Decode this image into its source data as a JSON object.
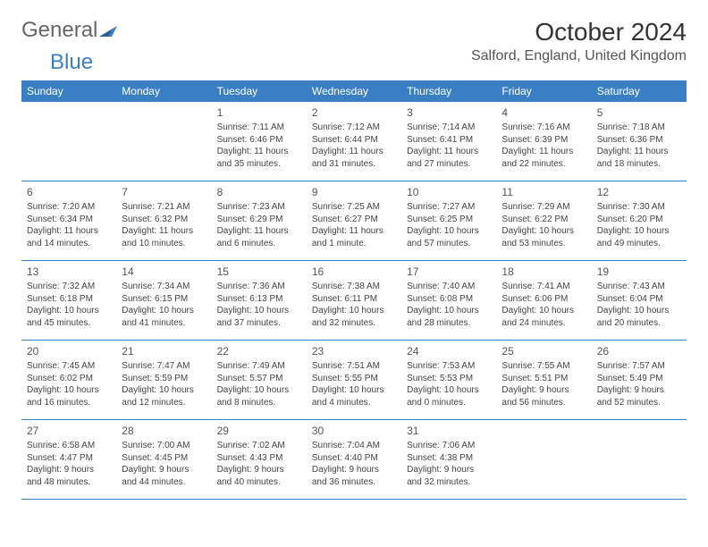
{
  "logo": {
    "text1": "General",
    "text2": "Blue",
    "shape_color": "#3a7fc4"
  },
  "header": {
    "month_title": "October 2024",
    "location": "Salford, England, United Kingdom"
  },
  "colors": {
    "header_bg": "#3a7fc4",
    "header_text": "#ffffff",
    "divider": "#3a7fc4",
    "text": "#444444"
  },
  "day_names": [
    "Sunday",
    "Monday",
    "Tuesday",
    "Wednesday",
    "Thursday",
    "Friday",
    "Saturday"
  ],
  "weeks": [
    [
      null,
      null,
      {
        "n": "1",
        "sr": "Sunrise: 7:11 AM",
        "ss": "Sunset: 6:46 PM",
        "dl": "Daylight: 11 hours and 35 minutes."
      },
      {
        "n": "2",
        "sr": "Sunrise: 7:12 AM",
        "ss": "Sunset: 6:44 PM",
        "dl": "Daylight: 11 hours and 31 minutes."
      },
      {
        "n": "3",
        "sr": "Sunrise: 7:14 AM",
        "ss": "Sunset: 6:41 PM",
        "dl": "Daylight: 11 hours and 27 minutes."
      },
      {
        "n": "4",
        "sr": "Sunrise: 7:16 AM",
        "ss": "Sunset: 6:39 PM",
        "dl": "Daylight: 11 hours and 22 minutes."
      },
      {
        "n": "5",
        "sr": "Sunrise: 7:18 AM",
        "ss": "Sunset: 6:36 PM",
        "dl": "Daylight: 11 hours and 18 minutes."
      }
    ],
    [
      {
        "n": "6",
        "sr": "Sunrise: 7:20 AM",
        "ss": "Sunset: 6:34 PM",
        "dl": "Daylight: 11 hours and 14 minutes."
      },
      {
        "n": "7",
        "sr": "Sunrise: 7:21 AM",
        "ss": "Sunset: 6:32 PM",
        "dl": "Daylight: 11 hours and 10 minutes."
      },
      {
        "n": "8",
        "sr": "Sunrise: 7:23 AM",
        "ss": "Sunset: 6:29 PM",
        "dl": "Daylight: 11 hours and 6 minutes."
      },
      {
        "n": "9",
        "sr": "Sunrise: 7:25 AM",
        "ss": "Sunset: 6:27 PM",
        "dl": "Daylight: 11 hours and 1 minute."
      },
      {
        "n": "10",
        "sr": "Sunrise: 7:27 AM",
        "ss": "Sunset: 6:25 PM",
        "dl": "Daylight: 10 hours and 57 minutes."
      },
      {
        "n": "11",
        "sr": "Sunrise: 7:29 AM",
        "ss": "Sunset: 6:22 PM",
        "dl": "Daylight: 10 hours and 53 minutes."
      },
      {
        "n": "12",
        "sr": "Sunrise: 7:30 AM",
        "ss": "Sunset: 6:20 PM",
        "dl": "Daylight: 10 hours and 49 minutes."
      }
    ],
    [
      {
        "n": "13",
        "sr": "Sunrise: 7:32 AM",
        "ss": "Sunset: 6:18 PM",
        "dl": "Daylight: 10 hours and 45 minutes."
      },
      {
        "n": "14",
        "sr": "Sunrise: 7:34 AM",
        "ss": "Sunset: 6:15 PM",
        "dl": "Daylight: 10 hours and 41 minutes."
      },
      {
        "n": "15",
        "sr": "Sunrise: 7:36 AM",
        "ss": "Sunset: 6:13 PM",
        "dl": "Daylight: 10 hours and 37 minutes."
      },
      {
        "n": "16",
        "sr": "Sunrise: 7:38 AM",
        "ss": "Sunset: 6:11 PM",
        "dl": "Daylight: 10 hours and 32 minutes."
      },
      {
        "n": "17",
        "sr": "Sunrise: 7:40 AM",
        "ss": "Sunset: 6:08 PM",
        "dl": "Daylight: 10 hours and 28 minutes."
      },
      {
        "n": "18",
        "sr": "Sunrise: 7:41 AM",
        "ss": "Sunset: 6:06 PM",
        "dl": "Daylight: 10 hours and 24 minutes."
      },
      {
        "n": "19",
        "sr": "Sunrise: 7:43 AM",
        "ss": "Sunset: 6:04 PM",
        "dl": "Daylight: 10 hours and 20 minutes."
      }
    ],
    [
      {
        "n": "20",
        "sr": "Sunrise: 7:45 AM",
        "ss": "Sunset: 6:02 PM",
        "dl": "Daylight: 10 hours and 16 minutes."
      },
      {
        "n": "21",
        "sr": "Sunrise: 7:47 AM",
        "ss": "Sunset: 5:59 PM",
        "dl": "Daylight: 10 hours and 12 minutes."
      },
      {
        "n": "22",
        "sr": "Sunrise: 7:49 AM",
        "ss": "Sunset: 5:57 PM",
        "dl": "Daylight: 10 hours and 8 minutes."
      },
      {
        "n": "23",
        "sr": "Sunrise: 7:51 AM",
        "ss": "Sunset: 5:55 PM",
        "dl": "Daylight: 10 hours and 4 minutes."
      },
      {
        "n": "24",
        "sr": "Sunrise: 7:53 AM",
        "ss": "Sunset: 5:53 PM",
        "dl": "Daylight: 10 hours and 0 minutes."
      },
      {
        "n": "25",
        "sr": "Sunrise: 7:55 AM",
        "ss": "Sunset: 5:51 PM",
        "dl": "Daylight: 9 hours and 56 minutes."
      },
      {
        "n": "26",
        "sr": "Sunrise: 7:57 AM",
        "ss": "Sunset: 5:49 PM",
        "dl": "Daylight: 9 hours and 52 minutes."
      }
    ],
    [
      {
        "n": "27",
        "sr": "Sunrise: 6:58 AM",
        "ss": "Sunset: 4:47 PM",
        "dl": "Daylight: 9 hours and 48 minutes."
      },
      {
        "n": "28",
        "sr": "Sunrise: 7:00 AM",
        "ss": "Sunset: 4:45 PM",
        "dl": "Daylight: 9 hours and 44 minutes."
      },
      {
        "n": "29",
        "sr": "Sunrise: 7:02 AM",
        "ss": "Sunset: 4:43 PM",
        "dl": "Daylight: 9 hours and 40 minutes."
      },
      {
        "n": "30",
        "sr": "Sunrise: 7:04 AM",
        "ss": "Sunset: 4:40 PM",
        "dl": "Daylight: 9 hours and 36 minutes."
      },
      {
        "n": "31",
        "sr": "Sunrise: 7:06 AM",
        "ss": "Sunset: 4:38 PM",
        "dl": "Daylight: 9 hours and 32 minutes."
      },
      null,
      null
    ]
  ]
}
